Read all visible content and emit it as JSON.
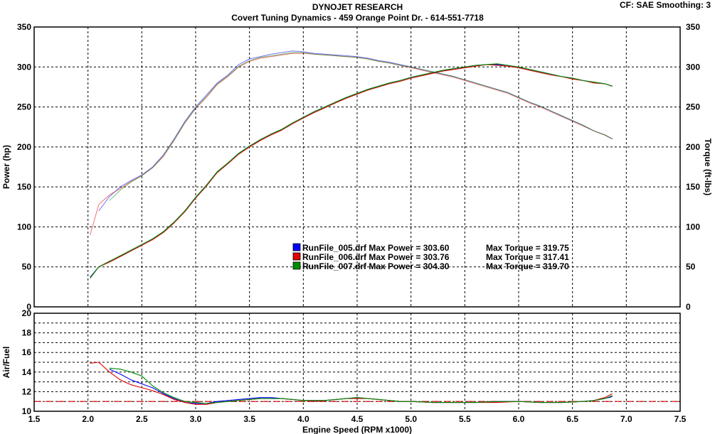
{
  "header": {
    "title": "DYNOJET RESEARCH",
    "subtitle": "Covert Tuning Dynamics - 459 Orange Point Dr. - 614-551-7718",
    "cf_info": "CF: SAE  Smoothing: 3"
  },
  "colors": {
    "run_005": "#0000ff",
    "run_006": "#e00000",
    "run_007": "#008a00",
    "reference_line": "#e00000",
    "grid": "#000000"
  },
  "chart_data": [
    {
      "type": "line",
      "name": "power-torque",
      "xlabel": "Engine Speed (RPM x1000)",
      "ylabel_left": "Power (hp)",
      "ylabel_right": "Torque (ft-lbs)",
      "xlim": [
        1.5,
        7.5
      ],
      "ylim": [
        0,
        350
      ],
      "xticks": [
        "1.5",
        "2.0",
        "2.5",
        "3.0",
        "3.5",
        "4.0",
        "4.5",
        "5.0",
        "5.5",
        "6.0",
        "6.5",
        "7.0",
        "7.5"
      ],
      "yticks": [
        "0",
        "50",
        "100",
        "150",
        "200",
        "250",
        "300",
        "350"
      ],
      "grid": true,
      "legend": [
        {
          "text": "RunFile_005.drf Max Power = 303.60",
          "torque": "Max Torque = 319.75",
          "color": "#0000ff"
        },
        {
          "text": "RunFile_006.drf Max Power = 303.76",
          "torque": "Max Torque = 317.41",
          "color": "#e00000"
        },
        {
          "text": "RunFile_007.drf Max Power = 304.30",
          "torque": "Max Torque = 319.70",
          "color": "#008a00"
        }
      ],
      "power": {
        "x": [
          2.02,
          2.1,
          2.2,
          2.3,
          2.4,
          2.5,
          2.6,
          2.7,
          2.8,
          2.9,
          3.0,
          3.1,
          3.2,
          3.3,
          3.4,
          3.5,
          3.6,
          3.7,
          3.8,
          3.9,
          4.0,
          4.1,
          4.2,
          4.3,
          4.4,
          4.5,
          4.6,
          4.7,
          4.8,
          4.9,
          5.0,
          5.1,
          5.2,
          5.3,
          5.4,
          5.5,
          5.6,
          5.7,
          5.8,
          5.9,
          6.0,
          6.1,
          6.2,
          6.3,
          6.4,
          6.5,
          6.6,
          6.7,
          6.8,
          6.87
        ],
        "series": [
          {
            "name": "RunFile_005.drf",
            "values": [
              37,
              50,
              57,
              63,
              70,
              77,
              85,
              94,
              106,
              120,
              137,
              152,
              169,
              180,
              192,
              201,
              209,
              216,
              222,
              230,
              237,
              244,
              250,
              256,
              262,
              267,
              272,
              276,
              280,
              283,
              287,
              290,
              293,
              295,
              298,
              300,
              302,
              303,
              303,
              302,
              299,
              297,
              294,
              291,
              288,
              286,
              283,
              281,
              279,
              276
            ]
          },
          {
            "name": "RunFile_006.drf",
            "values": [
              36,
              50,
              56,
              63,
              70,
              77,
              84,
              93,
              105,
              119,
              136,
              151,
              168,
              179,
              191,
              200,
              208,
              215,
              221,
              229,
              236,
              243,
              249,
              255,
              261,
              266,
              271,
              275,
              279,
              282,
              286,
              289,
              292,
              295,
              297,
              299,
              301,
              303,
              302,
              301,
              299,
              296,
              293,
              290,
              288,
              285,
              283,
              280,
              279,
              276
            ]
          },
          {
            "name": "RunFile_007.drf",
            "values": [
              36,
              50,
              57,
              64,
              71,
              78,
              85,
              94,
              106,
              120,
              137,
              152,
              169,
              180,
              192,
              201,
              209,
              216,
              222,
              230,
              237,
              244,
              250,
              256,
              262,
              267,
              272,
              276,
              280,
              283,
              287,
              290,
              293,
              296,
              298,
              300,
              302,
              303,
              304,
              302,
              300,
              297,
              294,
              291,
              288,
              286,
              283,
              281,
              279,
              276
            ]
          }
        ]
      },
      "torque": {
        "x": [
          2.02,
          2.1,
          2.2,
          2.3,
          2.4,
          2.5,
          2.6,
          2.7,
          2.8,
          2.9,
          3.0,
          3.1,
          3.2,
          3.3,
          3.4,
          3.5,
          3.6,
          3.7,
          3.8,
          3.9,
          4.0,
          4.1,
          4.2,
          4.3,
          4.4,
          4.5,
          4.6,
          4.7,
          4.8,
          4.9,
          5.0,
          5.1,
          5.2,
          5.3,
          5.4,
          5.5,
          5.6,
          5.7,
          5.8,
          5.9,
          6.0,
          6.1,
          6.2,
          6.3,
          6.4,
          6.5,
          6.6,
          6.7,
          6.8,
          6.87
        ],
        "series": [
          {
            "name": "RunFile_005.drf",
            "values": [
              null,
              120,
              138,
              150,
              158,
              165,
              175,
              190,
              210,
              232,
              250,
              265,
              280,
              290,
              303,
              310,
              313,
              316,
              318,
              320,
              319,
              317,
              316,
              315,
              314,
              313,
              311,
              308,
              306,
              303,
              300,
              297,
              294,
              291,
              288,
              284,
              280,
              276,
              272,
              268,
              262,
              256,
              251,
              245,
              239,
              233,
              227,
              220,
              215,
              210
            ]
          },
          {
            "name": "RunFile_006.drf",
            "values": [
              90,
              128,
              140,
              148,
              157,
              164,
              174,
              188,
              208,
              230,
              248,
              262,
              278,
              288,
              300,
              307,
              311,
              313,
              315,
              317,
              317,
              316,
              315,
              314,
              313,
              312,
              310,
              307,
              305,
              302,
              299,
              296,
              293,
              290,
              287,
              283,
              279,
              275,
              271,
              267,
              261,
              255,
              250,
              244,
              238,
              232,
              226,
              220,
              215,
              210
            ]
          },
          {
            "name": "RunFile_007.drf",
            "values": [
              null,
              null,
              133,
              146,
              156,
              164,
              174,
              189,
              209,
              231,
              249,
              263,
              279,
              289,
              301,
              308,
              312,
              314,
              316,
              318,
              318,
              316,
              315,
              314,
              313,
              312,
              310,
              307,
              305,
              302,
              300,
              297,
              294,
              291,
              288,
              284,
              280,
              276,
              272,
              268,
              262,
              256,
              251,
              245,
              239,
              233,
              227,
              220,
              215,
              210
            ]
          }
        ]
      }
    },
    {
      "type": "line",
      "name": "air-fuel",
      "xlabel": "Engine Speed (RPM x1000)",
      "ylabel": "Air/Fuel",
      "xlim": [
        1.5,
        7.5
      ],
      "ylim": [
        10,
        20
      ],
      "xticks": [
        "1.5",
        "2.0",
        "2.5",
        "3.0",
        "3.5",
        "4.0",
        "4.5",
        "5.0",
        "5.5",
        "6.0",
        "6.5",
        "7.0",
        "7.5"
      ],
      "yticks": [
        "10",
        "12",
        "14",
        "16",
        "18",
        "20"
      ],
      "minor_yticks": [
        11,
        13,
        15,
        17,
        19
      ],
      "grid": true,
      "reference_line": 11,
      "x": [
        2.02,
        2.1,
        2.2,
        2.3,
        2.4,
        2.5,
        2.6,
        2.7,
        2.8,
        2.9,
        3.0,
        3.1,
        3.2,
        3.3,
        3.4,
        3.5,
        3.6,
        3.7,
        3.8,
        3.9,
        4.0,
        4.1,
        4.2,
        4.3,
        4.4,
        4.5,
        4.6,
        4.7,
        4.8,
        4.9,
        5.0,
        5.2,
        5.4,
        5.6,
        5.8,
        6.0,
        6.2,
        6.4,
        6.6,
        6.7,
        6.8,
        6.87
      ],
      "series": [
        {
          "name": "RunFile_005.drf",
          "values": [
            null,
            null,
            14.3,
            13.8,
            13.2,
            12.8,
            12.4,
            11.8,
            11.3,
            10.9,
            10.8,
            10.8,
            11.0,
            11.1,
            11.2,
            11.3,
            11.4,
            11.4,
            11.3,
            11.2,
            11.1,
            11.1,
            11.1,
            11.2,
            11.3,
            11.4,
            11.3,
            11.2,
            11.1,
            11.0,
            11.0,
            10.9,
            10.9,
            10.9,
            11.0,
            11.0,
            10.9,
            10.9,
            11.0,
            11.1,
            11.3,
            11.5
          ]
        },
        {
          "name": "RunFile_006.drf",
          "values": [
            14.9,
            15.0,
            14.0,
            13.2,
            12.7,
            12.4,
            12.1,
            11.7,
            11.2,
            10.9,
            10.7,
            10.7,
            10.9,
            11.0,
            11.1,
            11.2,
            11.3,
            11.3,
            11.3,
            11.2,
            11.1,
            11.0,
            11.1,
            11.2,
            11.3,
            11.3,
            11.3,
            11.2,
            11.1,
            11.0,
            11.0,
            10.9,
            10.9,
            10.9,
            10.9,
            11.0,
            10.9,
            10.9,
            11.0,
            11.1,
            11.4,
            11.8
          ]
        },
        {
          "name": "RunFile_007.drf",
          "values": [
            null,
            null,
            14.4,
            14.3,
            14.0,
            13.6,
            12.6,
            11.9,
            11.4,
            11.0,
            10.9,
            10.8,
            10.9,
            11.0,
            11.1,
            11.2,
            11.3,
            11.3,
            11.3,
            11.2,
            11.1,
            11.1,
            11.1,
            11.2,
            11.3,
            11.4,
            11.3,
            11.2,
            11.1,
            11.0,
            11.0,
            10.9,
            10.9,
            10.9,
            11.0,
            11.0,
            10.9,
            10.9,
            11.0,
            11.1,
            11.3,
            11.6
          ]
        }
      ]
    }
  ]
}
